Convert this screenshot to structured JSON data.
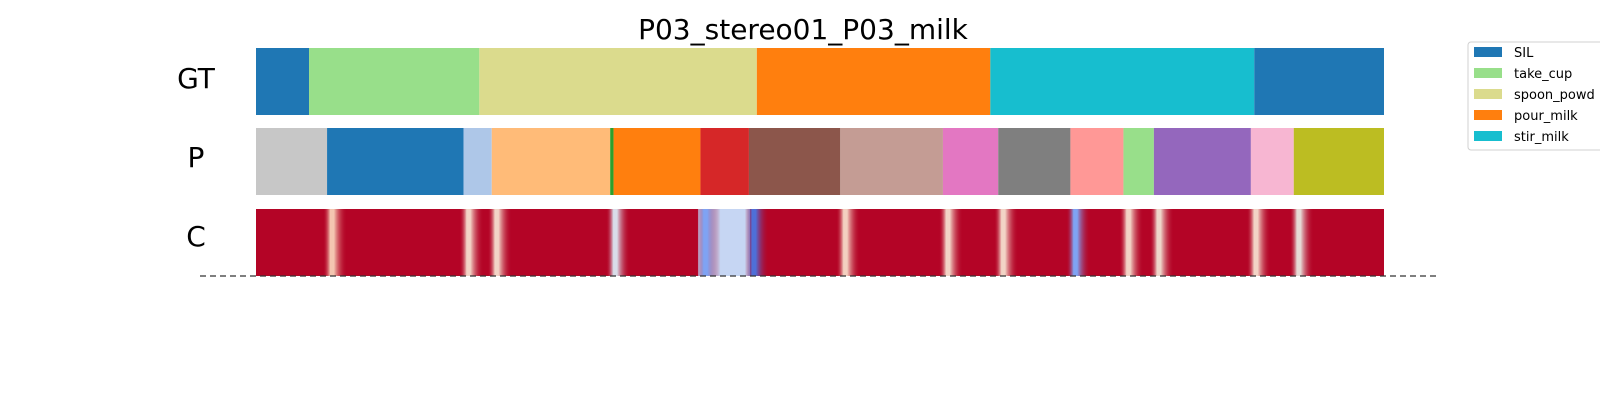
{
  "chart_data": {
    "type": "segmentation_timeline",
    "title": "P03_stereo01_P03_milk",
    "total_frames": 1000,
    "rows": [
      {
        "label": "GT",
        "segments": [
          {
            "start": 0,
            "end": 47,
            "color": "#1f77b4"
          },
          {
            "start": 47,
            "end": 198,
            "color": "#98df8a"
          },
          {
            "start": 198,
            "end": 444,
            "color": "#dbdb8d"
          },
          {
            "start": 444,
            "end": 651,
            "color": "#ff7f0e"
          },
          {
            "start": 651,
            "end": 885,
            "color": "#17becf"
          },
          {
            "start": 885,
            "end": 1000,
            "color": "#1f77b4"
          }
        ]
      },
      {
        "label": "P",
        "segments": [
          {
            "start": 0,
            "end": 63,
            "color": "#c7c7c7"
          },
          {
            "start": 63,
            "end": 184,
            "color": "#1f77b4"
          },
          {
            "start": 184,
            "end": 209,
            "color": "#aec7e8"
          },
          {
            "start": 209,
            "end": 314,
            "color": "#ffbb78"
          },
          {
            "start": 314,
            "end": 317,
            "color": "#2ca02c"
          },
          {
            "start": 317,
            "end": 394,
            "color": "#ff7f0e"
          },
          {
            "start": 394,
            "end": 437,
            "color": "#d62728"
          },
          {
            "start": 437,
            "end": 518,
            "color": "#8c564b"
          },
          {
            "start": 518,
            "end": 609,
            "color": "#c49c94"
          },
          {
            "start": 609,
            "end": 658,
            "color": "#e377c2"
          },
          {
            "start": 658,
            "end": 722,
            "color": "#7f7f7f"
          },
          {
            "start": 722,
            "end": 769,
            "color": "#ff9896"
          },
          {
            "start": 769,
            "end": 796,
            "color": "#98df8a"
          },
          {
            "start": 796,
            "end": 882,
            "color": "#9467bd"
          },
          {
            "start": 882,
            "end": 920,
            "color": "#f7b6d2"
          },
          {
            "start": 920,
            "end": 1000,
            "color": "#bcbd22"
          }
        ]
      },
      {
        "label": "C",
        "base_color": "#b40426",
        "confidence_drops": [
          {
            "at": 63,
            "color": "#f4c6b1"
          },
          {
            "at": 184,
            "color": "#f2d4c6"
          },
          {
            "at": 209,
            "color": "#f2d4c6"
          },
          {
            "at": 314,
            "color": "#d9dde9"
          },
          {
            "at": 394,
            "color": "#7fa3f3"
          },
          {
            "at": 437,
            "color": "#4f6fd8"
          },
          {
            "at": 518,
            "color": "#f3d0c0"
          },
          {
            "at": 609,
            "color": "#f2d4c6"
          },
          {
            "at": 658,
            "color": "#f2d4c6"
          },
          {
            "at": 722,
            "color": "#7fa3f3"
          },
          {
            "at": 769,
            "color": "#f2d4c6"
          },
          {
            "at": 796,
            "color": "#eed6ca"
          },
          {
            "at": 882,
            "color": "#f2d4c6"
          },
          {
            "at": 920,
            "color": "#e6dbd6"
          }
        ],
        "uncertain_region": {
          "start": 392,
          "end": 438,
          "color": "#c6d6f3"
        }
      }
    ],
    "legend": {
      "placement": "top-right",
      "entries": [
        {
          "name": "SIL",
          "color": "#1f77b4"
        },
        {
          "name": "take_cup",
          "color": "#98df8a"
        },
        {
          "name": "spoon_powd",
          "color": "#dbdb8d"
        },
        {
          "name": "pour_milk",
          "color": "#ff7f0e"
        },
        {
          "name": "stir_milk",
          "color": "#17becf"
        }
      ]
    },
    "baseline": "dashed"
  }
}
